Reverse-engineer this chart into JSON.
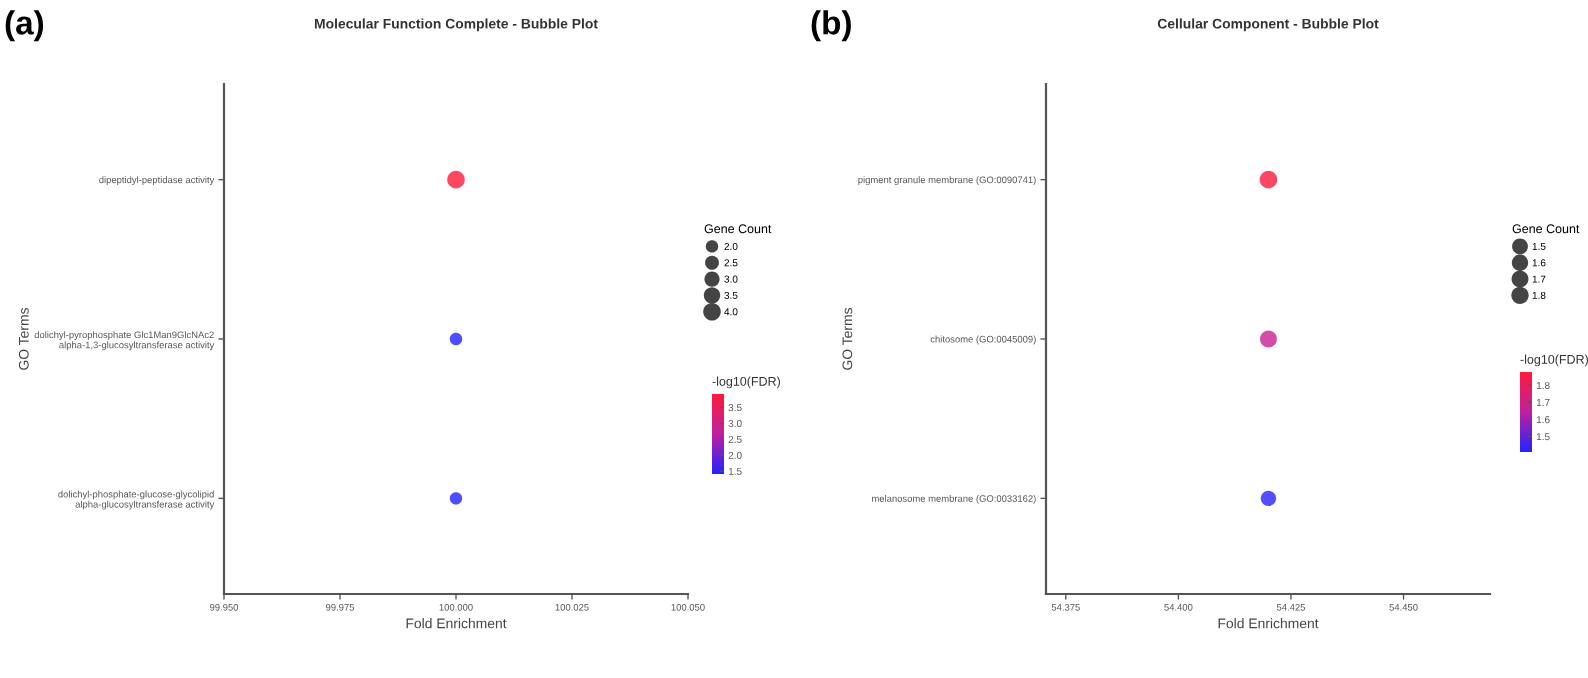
{
  "chart_data": [
    {
      "type": "bubble",
      "title": "Molecular Function Complete - Bubble Plot",
      "annotations": [
        "(a)"
      ],
      "orientation": "horizontal",
      "xlabel": "Fold Enrichment",
      "ylabel": "GO Terms",
      "legend_title": "Gene Count",
      "clabel": "-log10(FDR)",
      "categories": [
        "dipeptidyl-peptidase activity",
        "dolichyl-pyrophosphate Glc1Man9GlcNAc2\nalpha-1,3-glucosyltransferase activity",
        "dolichyl-phosphate-glucose-glycolipid\nalpha-glucosyltransferase activity"
      ],
      "values": [
        100.0,
        100.0,
        100.0
      ],
      "sizes": [
        4.0,
        2.0,
        2.0
      ],
      "cvalues": [
        3.9,
        1.42,
        1.42
      ],
      "size_legend": [
        {
          "value": 2.0,
          "label": "2.0"
        },
        {
          "value": 2.5,
          "label": "2.5"
        },
        {
          "value": 3.0,
          "label": "3.0"
        },
        {
          "value": 3.5,
          "label": "3.5"
        },
        {
          "value": 4.0,
          "label": "4.0"
        }
      ],
      "clim": [
        1.41,
        3.92
      ],
      "cticks": [
        {
          "value": 1.5,
          "label": "1.5"
        },
        {
          "value": 2.0,
          "label": "2.0"
        },
        {
          "value": 2.5,
          "label": "2.5"
        },
        {
          "value": 3.0,
          "label": "3.0"
        },
        {
          "value": 3.5,
          "label": "3.5"
        }
      ],
      "xlim": [
        99.95,
        100.05
      ],
      "xticks": [
        {
          "value": 99.95,
          "label": "99.950"
        },
        {
          "value": 99.975,
          "label": "99.975"
        },
        {
          "value": 100.0,
          "label": "100.000"
        },
        {
          "value": 100.025,
          "label": "100.025"
        },
        {
          "value": 100.05,
          "label": "100.050"
        }
      ],
      "grid": false
    },
    {
      "type": "bubble",
      "title": "Cellular Component - Bubble Plot",
      "annotations": [
        "(b)"
      ],
      "orientation": "horizontal",
      "xlabel": "Fold Enrichment",
      "ylabel": "GO Terms",
      "legend_title": "Gene Count",
      "clabel": "-log10(FDR)",
      "categories": [
        "pigment granule membrane (GO:0090741)",
        "chitosome (GO:0045009)",
        "melanosome membrane (GO:0033162)"
      ],
      "values": [
        54.42,
        54.42,
        54.42
      ],
      "sizes": [
        1.85,
        1.7,
        1.4
      ],
      "cvalues": [
        1.87,
        1.68,
        1.42
      ],
      "size_legend": [
        {
          "value": 1.5,
          "label": "1.5"
        },
        {
          "value": 1.6,
          "label": "1.6"
        },
        {
          "value": 1.7,
          "label": "1.7"
        },
        {
          "value": 1.8,
          "label": "1.8"
        }
      ],
      "clim": [
        1.409,
        1.878
      ],
      "cticks": [
        {
          "value": 1.5,
          "label": "1.5"
        },
        {
          "value": 1.6,
          "label": "1.6"
        },
        {
          "value": 1.7,
          "label": "1.7"
        },
        {
          "value": 1.8,
          "label": "1.8"
        }
      ],
      "xlim": [
        54.3706,
        54.4692
      ],
      "xticks": [
        {
          "value": 54.375,
          "label": "54.375"
        },
        {
          "value": 54.4,
          "label": "54.400"
        },
        {
          "value": 54.425,
          "label": "54.425"
        },
        {
          "value": 54.45,
          "label": "54.450"
        }
      ],
      "grid": false
    }
  ]
}
